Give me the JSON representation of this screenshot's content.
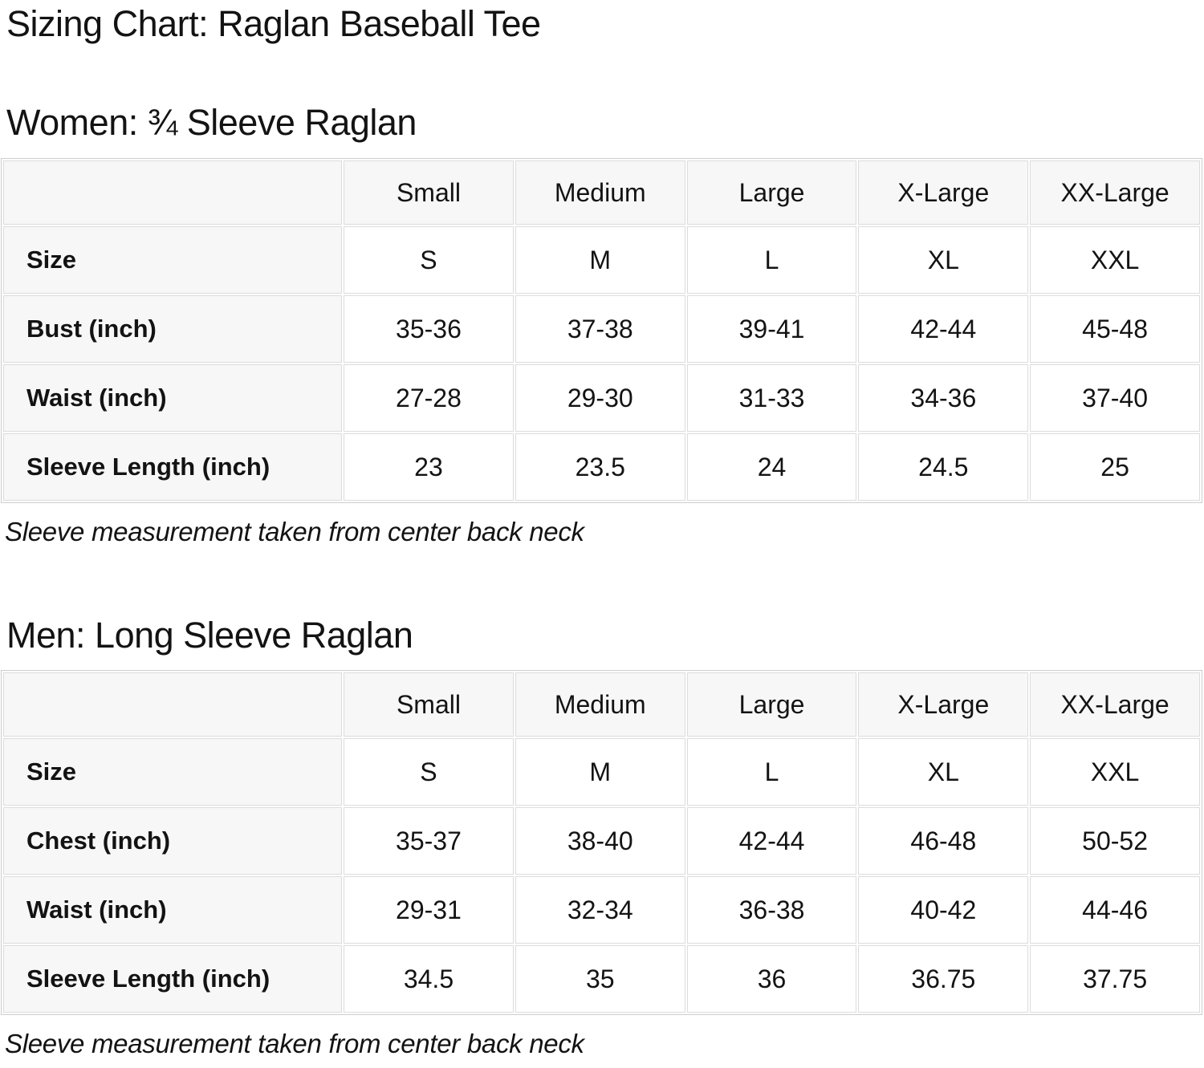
{
  "page": {
    "title": "Sizing Chart: Raglan Baseball Tee"
  },
  "colors": {
    "background": "#ffffff",
    "text": "#131313",
    "table_header_bg": "#f7f7f7",
    "table_border": "#cdcdcd"
  },
  "chart_data": [
    {
      "type": "table",
      "title": "Women: ¾ Sleeve Raglan",
      "columns": [
        "Small",
        "Medium",
        "Large",
        "X-Large",
        "XX-Large"
      ],
      "rows": [
        {
          "label": "Size",
          "values": [
            "S",
            "M",
            "L",
            "XL",
            "XXL"
          ]
        },
        {
          "label": "Bust (inch)",
          "values": [
            "35-36",
            "37-38",
            "39-41",
            "42-44",
            "45-48"
          ]
        },
        {
          "label": "Waist (inch)",
          "values": [
            "27-28",
            "29-30",
            "31-33",
            "34-36",
            "37-40"
          ]
        },
        {
          "label": "Sleeve Length (inch)",
          "values": [
            "23",
            "23.5",
            "24",
            "24.5",
            "25"
          ]
        }
      ],
      "note": "Sleeve measurement taken from center back neck"
    },
    {
      "type": "table",
      "title": "Men: Long Sleeve Raglan",
      "columns": [
        "Small",
        "Medium",
        "Large",
        "X-Large",
        "XX-Large"
      ],
      "rows": [
        {
          "label": "Size",
          "values": [
            "S",
            "M",
            "L",
            "XL",
            "XXL"
          ]
        },
        {
          "label": "Chest (inch)",
          "values": [
            "35-37",
            "38-40",
            "42-44",
            "46-48",
            "50-52"
          ]
        },
        {
          "label": "Waist (inch)",
          "values": [
            "29-31",
            "32-34",
            "36-38",
            "40-42",
            "44-46"
          ]
        },
        {
          "label": "Sleeve Length (inch)",
          "values": [
            "34.5",
            "35",
            "36",
            "36.75",
            "37.75"
          ]
        }
      ],
      "note": "Sleeve measurement taken from center back neck"
    }
  ]
}
